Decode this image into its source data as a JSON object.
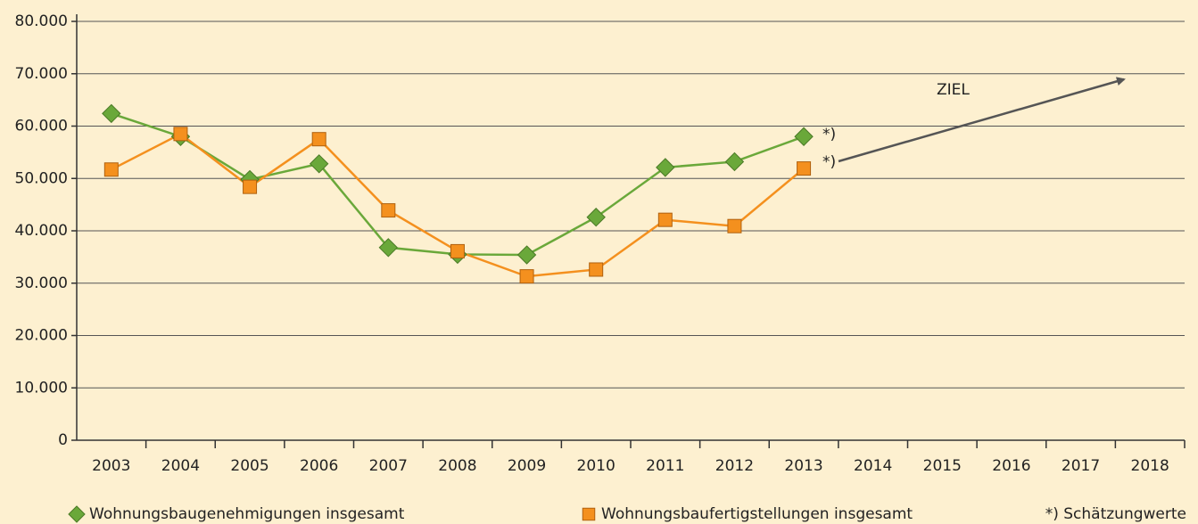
{
  "chart_data": {
    "type": "line",
    "categories": [
      "2003",
      "2004",
      "2005",
      "2006",
      "2007",
      "2008",
      "2009",
      "2010",
      "2011",
      "2012",
      "2013",
      "2014",
      "2015",
      "2016",
      "2017",
      "2018"
    ],
    "series": [
      {
        "name": "Wohnungsbaugenehmigungen insgesamt",
        "color": "#6aa83a",
        "marker": "diamond",
        "values": [
          62400,
          58000,
          49800,
          52800,
          36800,
          35500,
          35400,
          42600,
          52100,
          53200,
          58000,
          null,
          null,
          null,
          null,
          null
        ]
      },
      {
        "name": "Wohnungsbaufertigstellungen insgesamt",
        "color": "#f4901e",
        "marker": "square",
        "values": [
          51700,
          58500,
          48400,
          57500,
          43900,
          36100,
          31300,
          32600,
          42100,
          40900,
          51900,
          null,
          null,
          null,
          null,
          null
        ]
      }
    ],
    "ylim": [
      0,
      80000
    ],
    "yticks": [
      0,
      {
        "value": 10000,
        "label": "10.000"
      },
      {
        "value": 20000,
        "label": "20.000"
      },
      {
        "value": 30000,
        "label": "30.000"
      },
      {
        "value": 40000,
        "label": "40.000"
      },
      {
        "value": 50000,
        "label": "50.000"
      },
      {
        "value": 60000,
        "label": "60.000"
      },
      {
        "value": 70000,
        "label": "70.000"
      },
      {
        "value": 80000,
        "label": "80.000"
      }
    ],
    "grid": true,
    "annotations": [
      "ZIEL",
      "*)",
      "*)"
    ],
    "footnote": "*) Schätzungwerte"
  }
}
